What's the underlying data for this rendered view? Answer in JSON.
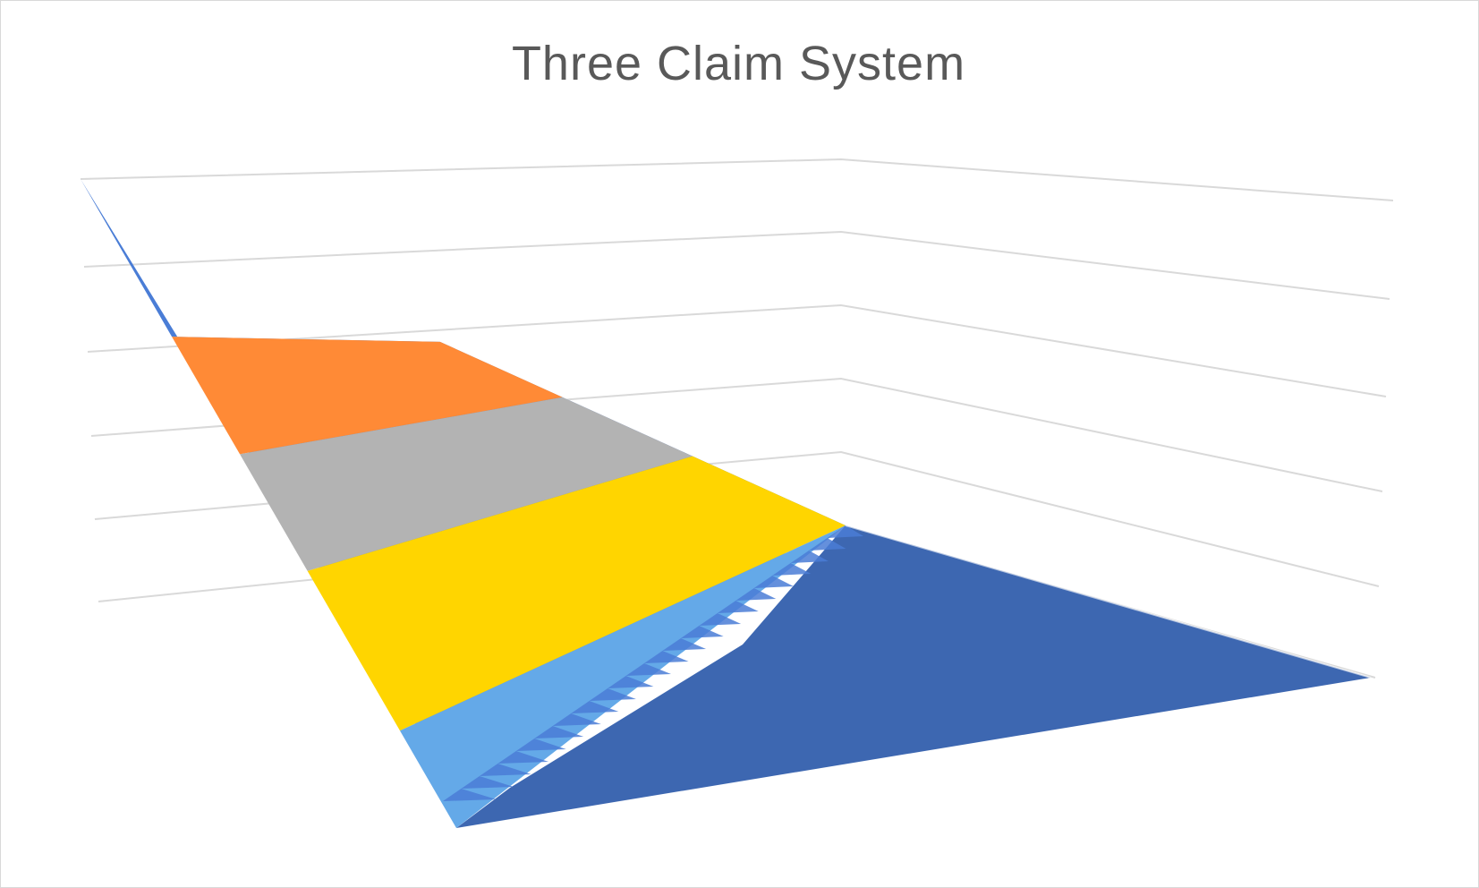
{
  "chart_data": {
    "type": "surface",
    "title": "Three Claim System",
    "xlabel": "",
    "ylabel": "",
    "zlabel": "",
    "axis_labels_visible": false,
    "tick_labels_visible": false,
    "legend_visible": false,
    "grid": true,
    "num_value_bands": 5,
    "value_bands": [
      {
        "band": 1,
        "color": "#4A7DD6"
      },
      {
        "band": 2,
        "color": "#FF8A36"
      },
      {
        "band": 3,
        "color": "#B3B3B3"
      },
      {
        "band": 4,
        "color": "#FFD500"
      },
      {
        "band": 5,
        "color": "#64A9E8"
      }
    ],
    "shadow_color": "#3D67B1"
  }
}
